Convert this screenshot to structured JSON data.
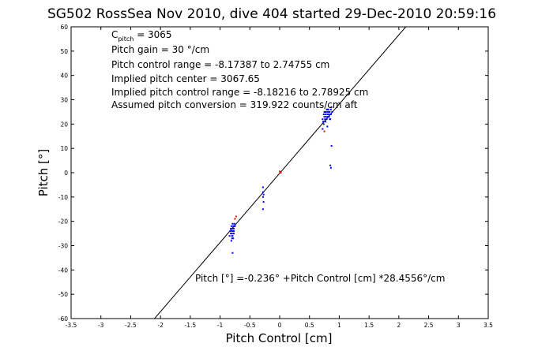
{
  "chart_data": {
    "type": "scatter",
    "title": "SG502 RossSea Nov 2010, dive 404 started 29-Dec-2010 20:59:16",
    "xlabel": "Pitch Control [cm]",
    "ylabel": "Pitch [°]",
    "xlim": [
      -3.5,
      3.5
    ],
    "ylim": [
      -60,
      60
    ],
    "xticks": [
      -3.5,
      -3,
      -2.5,
      -2,
      -1.5,
      -1,
      -0.5,
      0,
      0.5,
      1,
      1.5,
      2,
      2.5,
      3,
      3.5
    ],
    "yticks": [
      -60,
      -50,
      -40,
      -30,
      -20,
      -10,
      0,
      10,
      20,
      30,
      40,
      50,
      60
    ],
    "xtick_labels": [
      "-3.5",
      "-3",
      "-2.5",
      "-2",
      "-1.5",
      "-1",
      "-0.5",
      "0",
      "0.5",
      "1",
      "1.5",
      "2",
      "2.5",
      "3",
      "3.5"
    ],
    "ytick_labels": [
      "-60",
      "-50",
      "-40",
      "-30",
      "-20",
      "-10",
      "0",
      "10",
      "20",
      "30",
      "40",
      "50",
      "60"
    ],
    "grid": false,
    "annotations": {
      "c_pitch_main": "C",
      "c_pitch_sub": "pitch",
      "c_pitch_value": " = 3065",
      "gain": "Pitch gain = 30 °/cm",
      "range": "Pitch control range = -8.17387 to 2.74755 cm",
      "center": "Implied pitch center = 3067.65",
      "implied_range": "Implied pitch control range = -8.18216 to 2.78925 cm",
      "conversion": "Assumed pitch conversion = 319.922 counts/cm aft",
      "fit": "Pitch [°] =-0.236° +Pitch Control [cm] *28.4556°/cm"
    },
    "fit_line": {
      "intercept": -0.236,
      "slope": 28.4556,
      "color": "#000000"
    },
    "series": [
      {
        "color": "#0000ff",
        "points": [
          [
            -0.82,
            -23
          ],
          [
            -0.8,
            -24
          ],
          [
            -0.78,
            -22
          ],
          [
            -0.81,
            -25
          ],
          [
            -0.79,
            -26
          ],
          [
            -0.77,
            -23
          ],
          [
            -0.83,
            -24
          ],
          [
            -0.8,
            -27
          ],
          [
            -0.78,
            -25
          ],
          [
            -0.76,
            -22
          ],
          [
            -0.79,
            -21
          ],
          [
            -0.81,
            -28
          ],
          [
            -0.77,
            -24
          ],
          [
            -0.8,
            -26
          ],
          [
            -0.78,
            -23
          ],
          [
            -0.75,
            -22
          ],
          [
            -0.82,
            -25
          ],
          [
            -0.79,
            -24
          ],
          [
            -0.84,
            -26
          ],
          [
            -0.76,
            -21
          ],
          [
            -0.8,
            -23
          ],
          [
            -0.78,
            -27
          ],
          [
            -0.77,
            -25
          ],
          [
            -0.81,
            -22
          ],
          [
            -0.79,
            -33
          ],
          [
            -0.28,
            -6
          ],
          [
            -0.28,
            -8
          ],
          [
            -0.28,
            -10
          ],
          [
            -0.27,
            -9
          ],
          [
            -0.28,
            -15
          ],
          [
            -0.27,
            -12
          ],
          [
            0.72,
            22
          ],
          [
            0.74,
            24
          ],
          [
            0.76,
            25
          ],
          [
            0.78,
            23
          ],
          [
            0.8,
            26
          ],
          [
            0.82,
            24
          ],
          [
            0.84,
            25
          ],
          [
            0.86,
            26
          ],
          [
            0.73,
            21
          ],
          [
            0.75,
            23
          ],
          [
            0.77,
            24
          ],
          [
            0.79,
            22
          ],
          [
            0.81,
            25
          ],
          [
            0.83,
            23
          ],
          [
            0.85,
            24
          ],
          [
            0.87,
            27
          ],
          [
            0.74,
            20
          ],
          [
            0.76,
            22
          ],
          [
            0.78,
            25
          ],
          [
            0.8,
            24
          ],
          [
            0.82,
            26
          ],
          [
            0.84,
            22
          ],
          [
            0.86,
            24
          ],
          [
            0.75,
            25
          ],
          [
            0.77,
            21
          ],
          [
            0.79,
            26
          ],
          [
            0.81,
            23
          ],
          [
            0.83,
            25
          ],
          [
            0.85,
            22
          ],
          [
            0.88,
            25
          ],
          [
            0.72,
            18
          ],
          [
            0.85,
            3
          ],
          [
            0.86,
            2
          ],
          [
            0.87,
            11
          ],
          [
            0.8,
            19
          ]
        ]
      },
      {
        "color": "#ff0000",
        "points": [
          [
            -0.75,
            -19
          ],
          [
            -0.73,
            -18
          ],
          [
            0.0,
            0.5
          ],
          [
            0.02,
            0.0
          ],
          [
            0.75,
            17
          ]
        ]
      }
    ]
  }
}
